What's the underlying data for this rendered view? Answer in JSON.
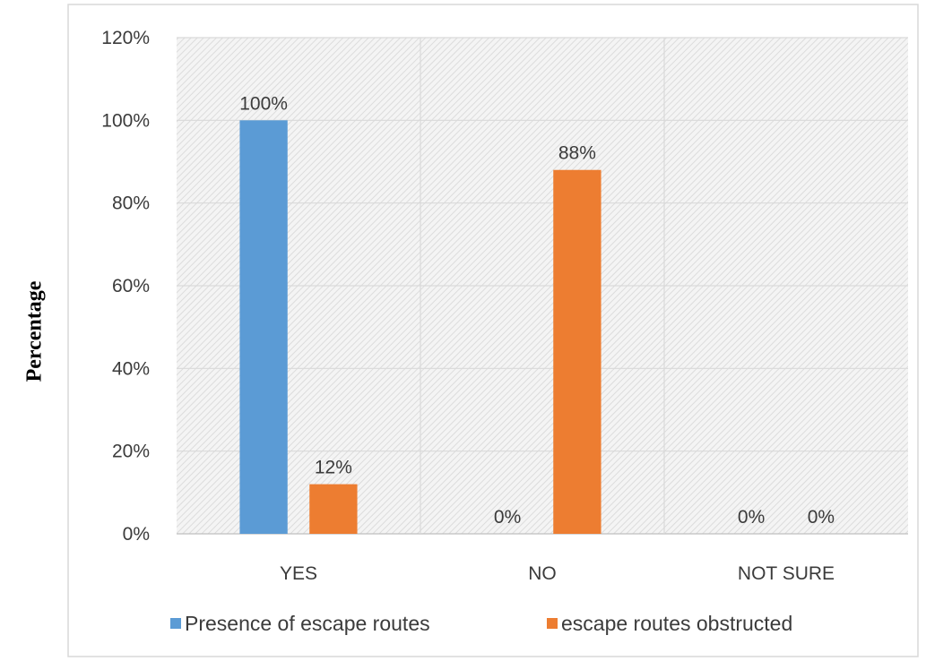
{
  "chart_data": {
    "type": "bar",
    "title": "",
    "xlabel": "",
    "ylabel": "Percentage",
    "categories": [
      "YES",
      "NO",
      "NOT SURE"
    ],
    "series": [
      {
        "name": "Presence of escape routes",
        "color": "#5b9bd5",
        "values": [
          100,
          0,
          0
        ],
        "labels": [
          "100%",
          "0%",
          "0%"
        ]
      },
      {
        "name": "escape routes obstructed",
        "color": "#ed7d31",
        "values": [
          12,
          88,
          0
        ],
        "labels": [
          "12%",
          "88%",
          "0%"
        ]
      }
    ],
    "ylim": [
      0,
      120
    ],
    "yticks": [
      0,
      20,
      40,
      60,
      80,
      100,
      120
    ],
    "ytick_labels": [
      "0%",
      "20%",
      "40%",
      "60%",
      "80%",
      "100%",
      "120%"
    ],
    "grid": true,
    "legend_position": "bottom"
  }
}
